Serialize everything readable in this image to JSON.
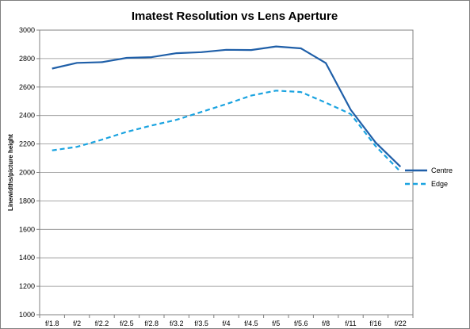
{
  "chart_data": {
    "type": "line",
    "title": "Imatest Resolution vs Lens Aperture",
    "xlabel": "",
    "ylabel": "Linewidths/picture height",
    "categories": [
      "f/1.8",
      "f/2",
      "f/2.2",
      "f/2.5",
      "f/2.8",
      "f/3.2",
      "f/3.5",
      "f/4",
      "f/4.5",
      "f/5",
      "f/5.6",
      "f/8",
      "f/11",
      "f/16",
      "f/22"
    ],
    "ylim": [
      1000,
      3000
    ],
    "yticks": [
      "1000",
      "1200",
      "1400",
      "1600",
      "1800",
      "2000",
      "2200",
      "2400",
      "2600",
      "2800",
      "3000"
    ],
    "grid": "horizontal",
    "legend_position": "right",
    "series": [
      {
        "name": "Centre",
        "color": "#1f5fa8",
        "dash": "solid",
        "values": [
          2730,
          2770,
          2775,
          2805,
          2810,
          2838,
          2845,
          2862,
          2860,
          2885,
          2872,
          2768,
          2440,
          2210,
          2040
        ]
      },
      {
        "name": "Edge",
        "color": "#1aa3e0",
        "dash": "dashed",
        "values": [
          2155,
          2180,
          2230,
          2285,
          2330,
          2370,
          2425,
          2480,
          2540,
          2575,
          2565,
          2490,
          2410,
          2185,
          2005
        ]
      }
    ]
  }
}
